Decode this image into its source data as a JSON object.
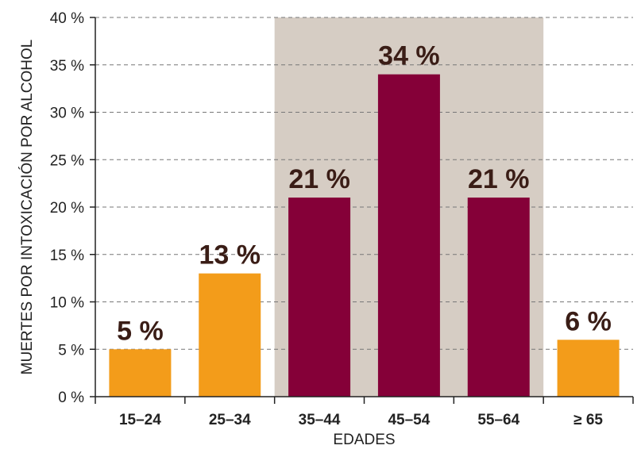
{
  "chart_data": {
    "type": "bar",
    "categories": [
      "15–24",
      "25–34",
      "35–44",
      "45–54",
      "55–64",
      "≥ 65"
    ],
    "values": [
      5,
      13,
      21,
      34,
      21,
      6
    ],
    "data_labels": [
      "5 %",
      "13 %",
      "21 %",
      "34 %",
      "21 %",
      "6 %"
    ],
    "highlight_categories": [
      "35–44",
      "45–54",
      "55–64"
    ],
    "title": "",
    "xlabel": "EDADES",
    "ylabel": "MUERTES POR INTOXICACIÓN POR ALCOHOL",
    "ylim": [
      0,
      40
    ],
    "yticks": [
      0,
      5,
      10,
      15,
      20,
      25,
      30,
      35,
      40
    ],
    "ytick_labels": [
      "0 %",
      "5 %",
      "10 %",
      "15 %",
      "20 %",
      "25 %",
      "30 %",
      "35 %",
      "40 %"
    ],
    "grid": true,
    "colors": {
      "bar_default": "#f39c1a",
      "bar_highlight": "#850038",
      "highlight_band": "#d6cdc4",
      "grid": "#777777",
      "label_text": "#3a1d16"
    }
  }
}
